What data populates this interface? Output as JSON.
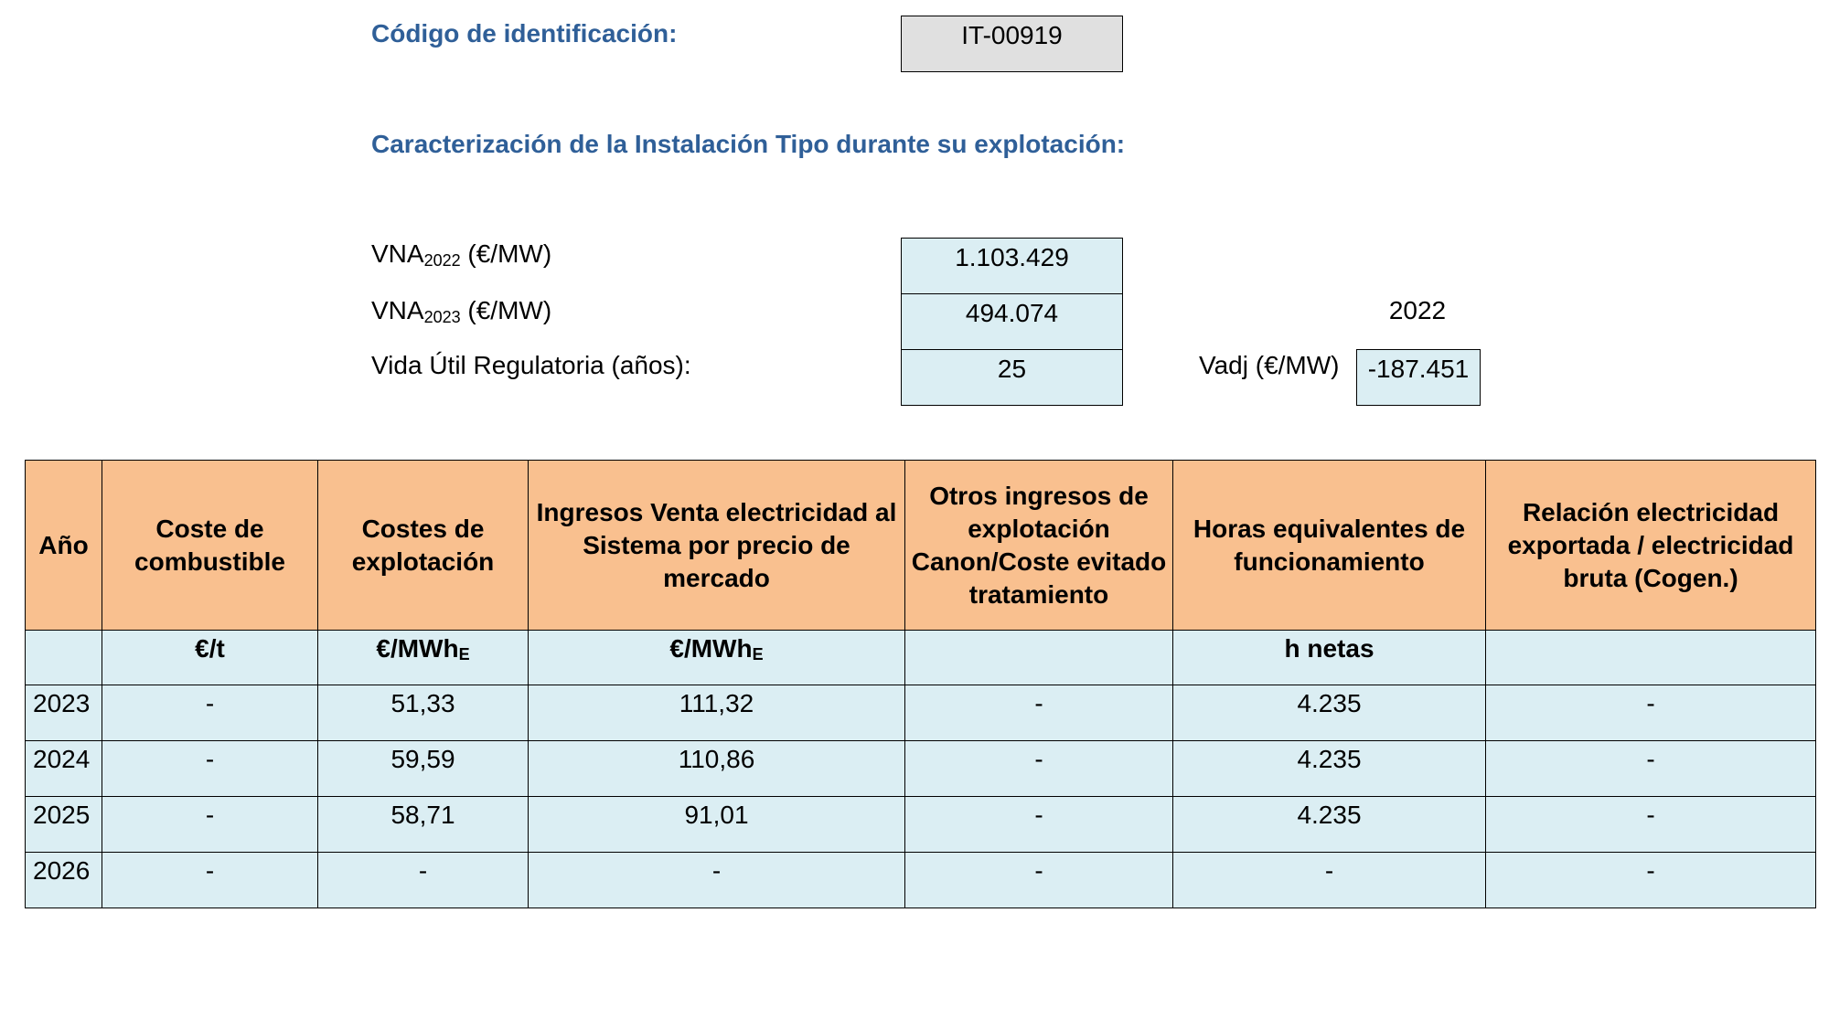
{
  "header": {
    "code_label": "Código de identificación:",
    "code_value": "IT-00919",
    "section_title": "Caracterización de la Instalación Tipo durante su explotación:"
  },
  "params": {
    "vna2022": {
      "label_main": "VNA",
      "label_sub": "2022",
      "label_unit": " (€/MW)",
      "value": "1.103.429"
    },
    "vna2023": {
      "label_main": "VNA",
      "label_sub": "2023",
      "label_unit": " (€/MW)",
      "value": "494.074"
    },
    "vida_util": {
      "label": "Vida Útil Regulatoria (años):",
      "value": "25"
    },
    "year_label": "2022",
    "vadj": {
      "label": "Vadj (€/MW)",
      "value": "-187.451"
    }
  },
  "table": {
    "columns": [
      "Año",
      "Coste de combustible",
      "Costes de explotación",
      "Ingresos Venta electricidad al Sistema por precio de mercado",
      "Otros ingresos de explotación Canon/Coste evitado tratamiento",
      "Horas equivalentes de funcionamiento",
      "Relación electricidad exportada / electricidad bruta (Cogen.)"
    ],
    "units": {
      "ano": "",
      "combustible": "€/t",
      "explotacion_main": "€/MWh",
      "explotacion_sub": "E",
      "ingresos_main": "€/MWh",
      "ingresos_sub": "E",
      "otros": "",
      "horas": "h netas",
      "relacion": ""
    },
    "rows": [
      [
        "2023",
        "-",
        "51,33",
        "111,32",
        "-",
        "4.235",
        "-"
      ],
      [
        "2024",
        "-",
        "59,59",
        "110,86",
        "-",
        "4.235",
        "-"
      ],
      [
        "2025",
        "-",
        "58,71",
        "91,01",
        "-",
        "4.235",
        "-"
      ],
      [
        "2026",
        "-",
        "-",
        "-",
        "-",
        "-",
        "-"
      ]
    ]
  },
  "colors": {
    "heading": "#2f5f98",
    "header_fill": "#f9c08f",
    "cell_fill": "#dbeef3",
    "code_fill": "#e0e0e0"
  }
}
